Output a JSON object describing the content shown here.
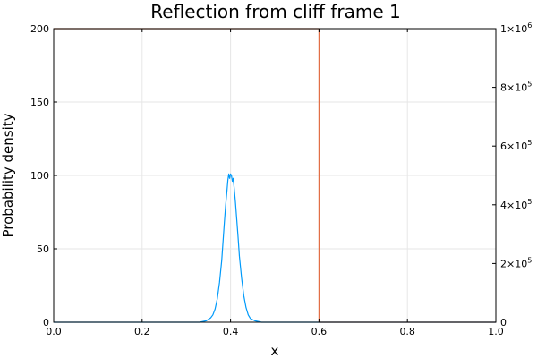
{
  "chart_data": {
    "type": "line",
    "title": "Reflection from cliff frame 1",
    "xlabel": "x",
    "ylabel": "Probability density",
    "xlim": [
      0.0,
      1.0
    ],
    "ylim": [
      0,
      200
    ],
    "y2lim": [
      0,
      1000000
    ],
    "grid": true,
    "x_ticks": [
      0.0,
      0.2,
      0.4,
      0.6,
      0.8,
      1.0
    ],
    "x_tick_labels": [
      "0.0",
      "0.2",
      "0.4",
      "0.6",
      "0.8",
      "1.0"
    ],
    "y_ticks": [
      0,
      50,
      100,
      150,
      200
    ],
    "y_tick_labels": [
      "0",
      "50",
      "100",
      "150",
      "200"
    ],
    "y2_ticks": [
      {
        "value": 0,
        "mantissa": "0",
        "exponent": ""
      },
      {
        "value": 200000,
        "mantissa": "2×10",
        "exponent": "5"
      },
      {
        "value": 400000,
        "mantissa": "4×10",
        "exponent": "5"
      },
      {
        "value": 600000,
        "mantissa": "6×10",
        "exponent": "5"
      },
      {
        "value": 800000,
        "mantissa": "8×10",
        "exponent": "5"
      },
      {
        "value": 1000000,
        "mantissa": "1×10",
        "exponent": "6"
      }
    ],
    "series": [
      {
        "axis": "left",
        "color": "#009AFA",
        "x": [
          0.0,
          0.33,
          0.345,
          0.355,
          0.36,
          0.365,
          0.37,
          0.375,
          0.38,
          0.383,
          0.386,
          0.389,
          0.392,
          0.394,
          0.396,
          0.398,
          0.4,
          0.402,
          0.404,
          0.406,
          0.408,
          0.411,
          0.414,
          0.417,
          0.42,
          0.425,
          0.43,
          0.435,
          0.44,
          0.445,
          0.455,
          0.47,
          1.0
        ],
        "y": [
          0,
          0,
          1,
          3,
          5,
          9,
          16,
          27,
          42,
          55,
          68,
          80,
          90,
          97,
          101,
          98,
          101,
          100,
          96,
          98,
          92,
          82,
          70,
          58,
          45,
          30,
          18,
          10,
          5,
          2.5,
          1,
          0,
          0
        ]
      },
      {
        "axis": "right",
        "color": "#E26F46",
        "x": [
          0.0,
          0.6,
          0.6,
          1.0
        ],
        "y": [
          1000000,
          1000000,
          0,
          0
        ]
      }
    ]
  }
}
